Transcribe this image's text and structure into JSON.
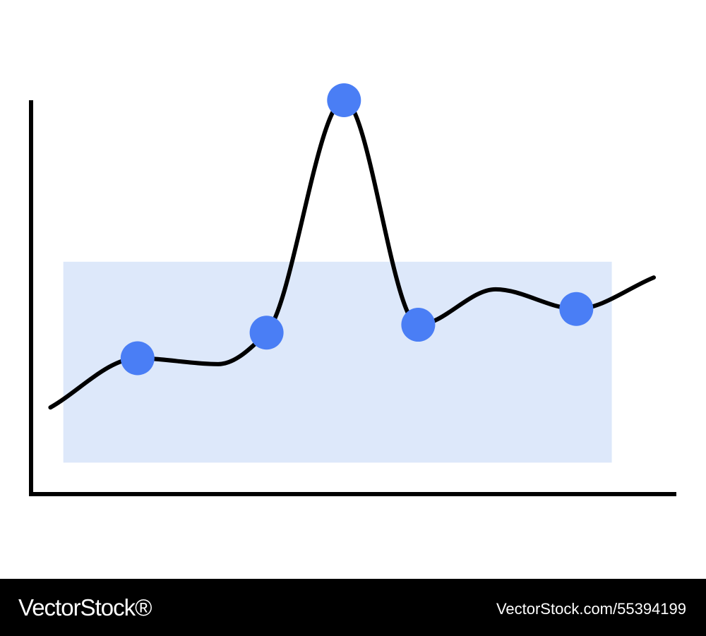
{
  "chart_data": {
    "type": "line",
    "title": "",
    "xlabel": "",
    "ylabel": "",
    "smooth": true,
    "xlim": [
      0,
      100
    ],
    "ylim": [
      0,
      100
    ],
    "grid": false,
    "band": {
      "x": [
        5,
        90
      ],
      "y": [
        8,
        59
      ]
    },
    "curve_x": [
      3,
      16.5,
      29,
      36.5,
      48.5,
      60,
      72,
      84.5,
      96.5
    ],
    "curve_y": [
      22,
      34.5,
      33,
      41,
      100,
      43,
      52,
      47,
      55
    ],
    "points": [
      {
        "x": 16.5,
        "y": 34.5
      },
      {
        "x": 36.5,
        "y": 41
      },
      {
        "x": 48.5,
        "y": 100
      },
      {
        "x": 60,
        "y": 43
      },
      {
        "x": 84.5,
        "y": 47
      }
    ],
    "colors": {
      "line": "#000000",
      "marker": "#4a7ef5",
      "band": "#dde8fa",
      "axis": "#000000"
    }
  },
  "footer": {
    "brand": "VectorStock®",
    "image_id": "VectorStock.com/55394199"
  }
}
